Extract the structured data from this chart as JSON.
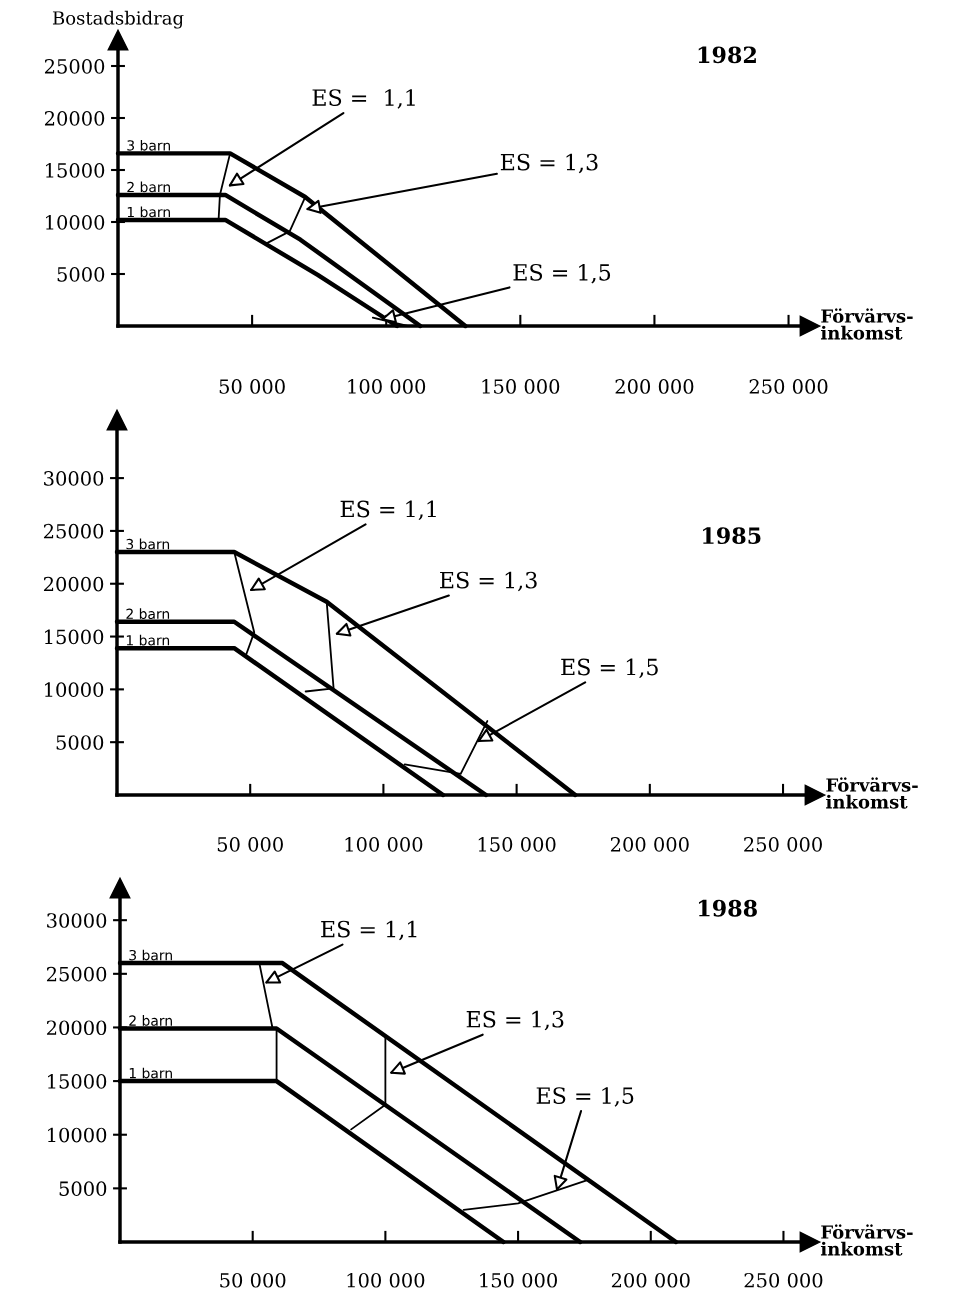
{
  "chart_data": [
    {
      "type": "line",
      "title": "1982",
      "ylabel": "Bostadsbidrag",
      "xlabel": "Förvärvs-\ninkomst",
      "xlim": [
        0,
        258000
      ],
      "ylim": [
        0,
        27500
      ],
      "xticks": [
        {
          "value": 50000,
          "label": "50 000"
        },
        {
          "value": 100000,
          "label": "100 000"
        },
        {
          "value": 150000,
          "label": "150 000"
        },
        {
          "value": 200000,
          "label": "200 000"
        },
        {
          "value": 250000,
          "label": "250 000"
        }
      ],
      "yticks": [
        5000,
        10000,
        15000,
        20000,
        25000
      ],
      "series": [
        {
          "name": "3 barn",
          "color": "#000000",
          "x": [
            0,
            41800,
            69800,
            129500
          ],
          "values": [
            16600,
            16600,
            12400,
            0
          ]
        },
        {
          "name": "2 barn",
          "color": "#000000",
          "x": [
            0,
            40000,
            68000,
            112700
          ],
          "values": [
            12600,
            12600,
            8300,
            0
          ]
        },
        {
          "name": "1 barn",
          "color": "#000000",
          "x": [
            0,
            40000,
            74600,
            104000
          ],
          "values": [
            10200,
            10200,
            4900,
            0
          ]
        },
        {
          "color": "#000000",
          "x": [
            41800,
            38000,
            37500
          ],
          "values": [
            16600,
            12600,
            10200
          ]
        },
        {
          "color": "#000000",
          "x": [
            69800,
            64000,
            55000
          ],
          "values": [
            12400,
            9100,
            7900
          ]
        },
        {
          "color": "#000000",
          "x": [
            95000,
            108000
          ],
          "values": [
            800,
            0
          ]
        }
      ],
      "annotations": [
        {
          "text": "ES =  1,1",
          "x": 41000,
          "y": 13400
        },
        {
          "text": "ES = 1,3",
          "x": 69800,
          "y": 11200
        },
        {
          "text": "ES = 1,5",
          "x": 97800,
          "y": 600
        }
      ]
    },
    {
      "type": "line",
      "title": "1985",
      "xlabel": "Förvärvs-\ninkomst",
      "xlim": [
        0,
        262000
      ],
      "ylim": [
        0,
        35500
      ],
      "xticks": [
        {
          "value": 50000,
          "label": "50 000"
        },
        {
          "value": 100000,
          "label": "100 000"
        },
        {
          "value": 150000,
          "label": "150 000"
        },
        {
          "value": 200000,
          "label": "200 000"
        },
        {
          "value": 250000,
          "label": "250 000"
        }
      ],
      "yticks": [
        5000,
        10000,
        15000,
        20000,
        25000,
        30000
      ],
      "series": [
        {
          "name": "3 barn",
          "color": "#000000",
          "x": [
            0,
            44000,
            78700,
            172000
          ],
          "values": [
            23000,
            23000,
            18300,
            0
          ]
        },
        {
          "name": "2 barn",
          "color": "#000000",
          "x": [
            0,
            44000,
            138500
          ],
          "values": [
            16400,
            16400,
            0
          ]
        },
        {
          "name": "1 barn",
          "color": "#000000",
          "x": [
            0,
            44000,
            122400
          ],
          "values": [
            13900,
            13900,
            0
          ]
        },
        {
          "color": "#000000",
          "x": [
            44000,
            51500,
            48500
          ],
          "values": [
            23000,
            15400,
            13300
          ]
        },
        {
          "color": "#000000",
          "x": [
            78700,
            81300,
            70800
          ],
          "values": [
            18300,
            10100,
            9800
          ]
        },
        {
          "color": "#000000",
          "x": [
            139000,
            129000,
            108000
          ],
          "values": [
            7000,
            2000,
            2900
          ]
        }
      ],
      "annotations": [
        {
          "text": "ES = 1,1",
          "x": 49600,
          "y": 19300
        },
        {
          "text": "ES = 1,3",
          "x": 81700,
          "y": 15200
        },
        {
          "text": "ES = 1,5",
          "x": 135000,
          "y": 5000
        }
      ]
    },
    {
      "type": "line",
      "title": "1988",
      "xlabel": "Förvärvs-\ninkomst",
      "xlim": [
        0,
        260000
      ],
      "ylim": [
        0,
        33000
      ],
      "xticks": [
        {
          "value": 50000,
          "label": "50 000"
        },
        {
          "value": 100000,
          "label": "100 000"
        },
        {
          "value": 150000,
          "label": "150 000"
        },
        {
          "value": 200000,
          "label": "200 000"
        },
        {
          "value": 250000,
          "label": "250 000"
        }
      ],
      "yticks": [
        5000,
        10000,
        15000,
        20000,
        25000,
        30000
      ],
      "series": [
        {
          "name": "3 barn",
          "color": "#000000",
          "x": [
            0,
            61200,
            209500
          ],
          "values": [
            26000,
            26000,
            0
          ]
        },
        {
          "name": "2 barn",
          "color": "#000000",
          "x": [
            0,
            59000,
            173400
          ],
          "values": [
            19900,
            19900,
            0
          ]
        },
        {
          "name": "1 barn",
          "color": "#000000",
          "x": [
            0,
            59000,
            144500
          ],
          "values": [
            15000,
            15000,
            0
          ]
        },
        {
          "color": "#000000",
          "x": [
            52500,
            57500,
            59000,
            59000
          ],
          "values": [
            26000,
            19900,
            19900,
            15000
          ]
        },
        {
          "color": "#000000",
          "x": [
            100000,
            100000,
            87100
          ],
          "values": [
            19200,
            12800,
            10500
          ]
        },
        {
          "color": "#000000",
          "x": [
            176400,
            150000,
            129500
          ],
          "values": [
            5800,
            3600,
            3000
          ]
        }
      ],
      "annotations": [
        {
          "text": "ES = 1,1",
          "x": 54400,
          "y": 24100
        },
        {
          "text": "ES = 1,3",
          "x": 101400,
          "y": 15700
        },
        {
          "text": "ES = 1,5",
          "x": 164400,
          "y": 4700
        }
      ]
    }
  ]
}
